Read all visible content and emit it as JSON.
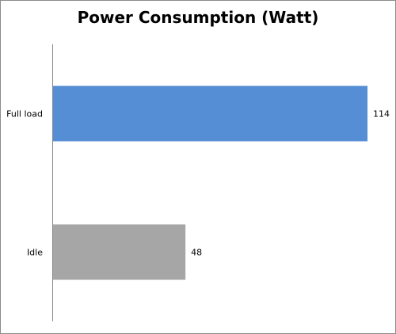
{
  "chart_data": {
    "type": "bar",
    "orientation": "horizontal",
    "title": "Power Consumption (Watt)",
    "categories": [
      "Full load",
      "Idle"
    ],
    "values": [
      114,
      48
    ],
    "colors": [
      "#558ed5",
      "#a6a6a6"
    ],
    "xlim": [
      0,
      114
    ],
    "grid": false,
    "data_labels": true
  }
}
